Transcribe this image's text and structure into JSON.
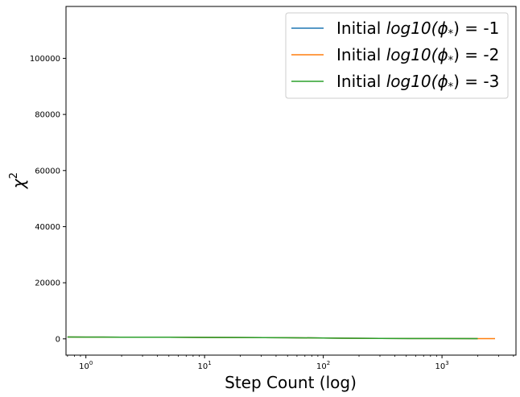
{
  "chart_data": {
    "type": "line",
    "xlabel": "Step Count (log)",
    "ylabel": "χ",
    "ylabel_superscript": "2",
    "x_scale": "log",
    "xlim": [
      0.68,
      4200
    ],
    "ylim": [
      -5800,
      118500
    ],
    "x_ticks": [
      {
        "value": 1,
        "base": "10",
        "exp": "0"
      },
      {
        "value": 10,
        "base": "10",
        "exp": "1"
      },
      {
        "value": 100,
        "base": "10",
        "exp": "2"
      },
      {
        "value": 1000,
        "base": "10",
        "exp": "3"
      }
    ],
    "y_ticks": [
      {
        "value": 0,
        "label": "0"
      },
      {
        "value": 20000,
        "label": "20000"
      },
      {
        "value": 40000,
        "label": "40000"
      },
      {
        "value": 60000,
        "label": "60000"
      },
      {
        "value": 80000,
        "label": "80000"
      },
      {
        "value": 100000,
        "label": "100000"
      }
    ],
    "grid": false,
    "legend_position": "top-right",
    "series": [
      {
        "name_prefix": "Initial ",
        "name_math": "log10(ϕ",
        "name_sub": "*",
        "name_suffix": ") = -1",
        "color": "#1f77b4",
        "x": [
          0.7,
          1,
          2,
          5,
          10,
          20,
          50,
          100,
          150,
          300,
          600,
          1000,
          2000
        ],
        "y": [
          650,
          640,
          600,
          560,
          520,
          480,
          400,
          320,
          240,
          160,
          120,
          100,
          90
        ]
      },
      {
        "name_prefix": "Initial ",
        "name_math": "log10(ϕ",
        "name_sub": "*",
        "name_suffix": ") = -2",
        "color": "#ff7f0e",
        "x": [
          0.7,
          1,
          2,
          5,
          10,
          20,
          50,
          100,
          150,
          300,
          600,
          1000,
          2000,
          2800
        ],
        "y": [
          650,
          640,
          600,
          560,
          520,
          480,
          400,
          320,
          240,
          160,
          120,
          100,
          90,
          80
        ]
      },
      {
        "name_prefix": "Initial ",
        "name_math": "log10(ϕ",
        "name_sub": "*",
        "name_suffix": ") = -3",
        "color": "#2ca02c",
        "x": [
          0.7,
          1,
          2,
          5,
          10,
          20,
          50,
          100,
          150,
          300,
          600,
          1000,
          2000
        ],
        "y": [
          650,
          640,
          600,
          560,
          520,
          480,
          400,
          320,
          240,
          160,
          120,
          100,
          90
        ]
      }
    ]
  }
}
